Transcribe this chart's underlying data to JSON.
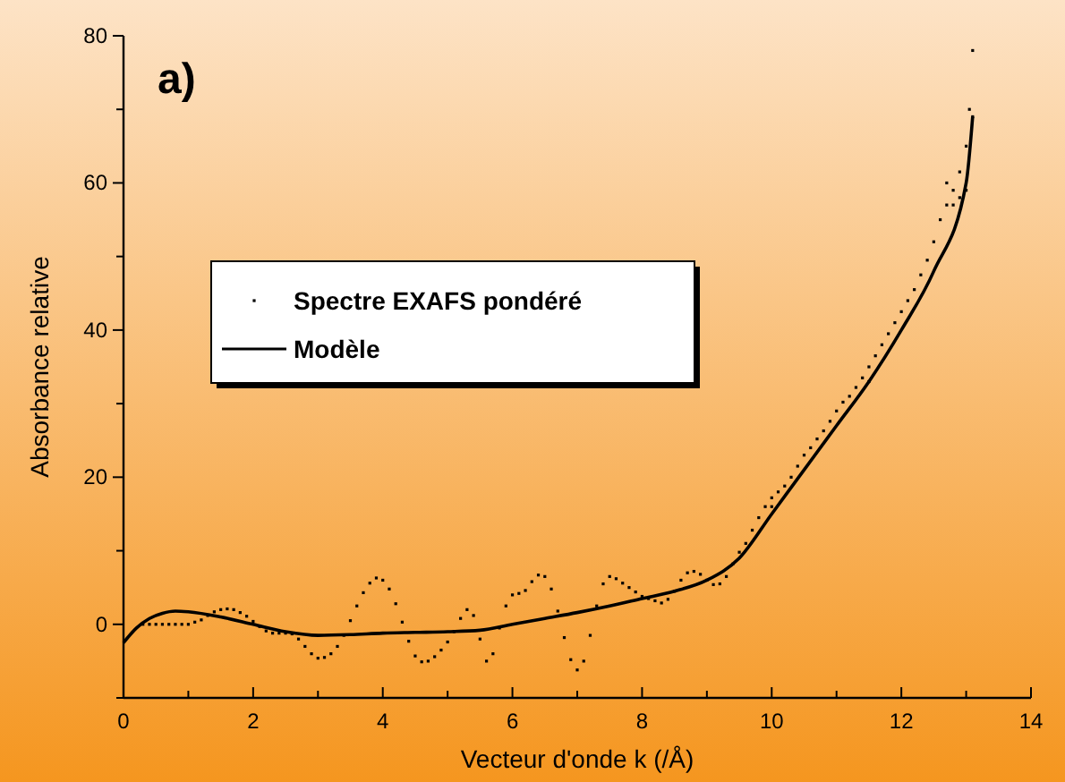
{
  "chart_data": {
    "type": "scatter",
    "xlabel": "Vecteur d'onde k (/Å)",
    "ylabel": "Absorbance relative",
    "annotations": [
      "a)"
    ],
    "xlim": [
      0,
      14
    ],
    "ylim": [
      -10,
      80
    ],
    "xticks": [
      0,
      {
        "value": 1,
        "label": null
      },
      2,
      {
        "value": 3,
        "label": null
      },
      4,
      {
        "value": 5,
        "label": null
      },
      6,
      {
        "value": 7,
        "label": null
      },
      8,
      {
        "value": 9,
        "label": null
      },
      10,
      {
        "value": 11,
        "label": null
      },
      12,
      {
        "value": 13,
        "label": null
      },
      14
    ],
    "yticks": [
      {
        "value": -10,
        "label": null
      },
      0,
      {
        "value": 10,
        "label": null
      },
      20,
      {
        "value": 30,
        "label": null
      },
      40,
      {
        "value": 50,
        "label": null
      },
      60,
      {
        "value": 70,
        "label": null
      },
      80
    ],
    "grid": false,
    "legend": "left",
    "series": [
      {
        "name": "Spectre EXAFS pondéré",
        "marker": "square",
        "color": "#000000",
        "x": [
          0.3,
          0.4,
          0.5,
          0.6,
          0.7,
          0.8,
          0.9,
          1.0,
          1.1,
          1.2,
          1.3,
          1.4,
          1.5,
          1.6,
          1.7,
          1.8,
          1.9,
          2.0,
          2.1,
          2.2,
          2.3,
          2.4,
          2.5,
          2.6,
          2.7,
          2.8,
          2.9,
          3.0,
          3.1,
          3.2,
          3.3,
          3.4,
          3.5,
          3.6,
          3.7,
          3.8,
          3.9,
          4.0,
          4.1,
          4.2,
          4.3,
          4.4,
          4.5,
          4.6,
          4.7,
          4.8,
          4.9,
          5.0,
          5.1,
          5.2,
          5.3,
          5.4,
          5.5,
          5.6,
          5.7,
          5.8,
          5.9,
          6.0,
          6.1,
          6.2,
          6.3,
          6.4,
          6.5,
          6.6,
          6.7,
          6.8,
          6.9,
          7.0,
          7.1,
          7.2,
          7.3,
          7.4,
          7.5,
          7.6,
          7.7,
          7.8,
          7.9,
          8.0,
          8.1,
          8.2,
          8.3,
          8.4,
          8.5,
          8.6,
          8.7,
          8.8,
          8.9,
          9.0,
          9.1,
          9.2,
          9.3,
          9.4,
          9.5,
          9.6,
          9.7,
          9.8,
          9.9,
          10.0,
          10.1,
          10.2,
          10.3,
          10.4,
          10.5,
          10.6,
          10.7,
          10.8,
          10.9,
          11.0,
          11.1,
          11.2,
          11.3,
          11.4,
          11.5,
          11.6,
          11.7,
          11.8,
          11.9,
          12.0,
          12.1,
          12.2,
          12.3,
          12.4,
          12.5,
          12.6,
          12.7,
          12.8,
          12.9,
          13.0,
          13.05,
          13.1,
          12.7,
          12.8,
          12.9,
          13.0,
          13.1,
          11.5,
          10.0
        ],
        "values": [
          0,
          0,
          0,
          0,
          0,
          0,
          0,
          0,
          0.3,
          0.6,
          1.2,
          1.7,
          2,
          2.1,
          2,
          1.6,
          1.1,
          0.4,
          -0.3,
          -0.9,
          -1.2,
          -1.2,
          -1.2,
          -1.3,
          -2,
          -3,
          -4,
          -4.6,
          -4.5,
          -4,
          -3,
          -1.5,
          0.5,
          2.5,
          4.3,
          5.6,
          6.3,
          6,
          4.8,
          2.8,
          0.3,
          -2.3,
          -4.3,
          -5.1,
          -5,
          -4.4,
          -3.5,
          -2.4,
          -1,
          0.8,
          2,
          1.2,
          -2,
          -5,
          -4,
          -0.5,
          2.5,
          4,
          4.2,
          4.6,
          5.8,
          6.7,
          6.5,
          4.8,
          1.8,
          -1.8,
          -4.8,
          -6.2,
          -5,
          -1.5,
          2.5,
          5.5,
          6.5,
          6.2,
          5.6,
          5,
          4.4,
          3.8,
          3.5,
          3.2,
          2.9,
          3.4,
          4.5,
          6,
          7,
          7.2,
          6.8,
          6,
          5.4,
          5.5,
          6.5,
          8.2,
          9.8,
          11,
          12.8,
          14.5,
          16,
          17.2,
          18,
          18.8,
          20,
          21.5,
          23,
          24,
          25.2,
          26.3,
          27.6,
          29,
          30.2,
          31,
          32.2,
          33.5,
          35,
          36.5,
          38,
          39.5,
          41,
          42.5,
          44,
          45.5,
          47.5,
          49.5,
          52,
          55,
          57,
          59,
          61.5,
          65,
          70,
          78,
          60,
          57,
          58,
          59,
          69,
          33,
          16
        ]
      },
      {
        "name": "Modèle",
        "type": "line",
        "marker": "none",
        "line_style": "solid",
        "color": "#000000",
        "x": [
          0,
          0.2,
          0.4,
          0.6,
          0.8,
          1.0,
          1.5,
          2.0,
          2.5,
          3.0,
          3.5,
          4.0,
          4.5,
          5.0,
          5.5,
          6.0,
          6.5,
          7.0,
          7.5,
          8.0,
          8.5,
          9.0,
          9.5,
          10.0,
          10.5,
          11.0,
          11.5,
          12.0,
          12.5,
          13.0,
          13.1
        ],
        "values": [
          -2.5,
          -0.5,
          0.8,
          1.5,
          1.8,
          1.7,
          1,
          0,
          -1,
          -1.5,
          -1.4,
          -1.2,
          -1.1,
          -1,
          -0.8,
          0,
          0.8,
          1.6,
          2.5,
          3.5,
          4.5,
          6,
          9,
          15,
          21,
          27,
          33,
          40,
          48,
          60,
          69
        ]
      }
    ]
  }
}
